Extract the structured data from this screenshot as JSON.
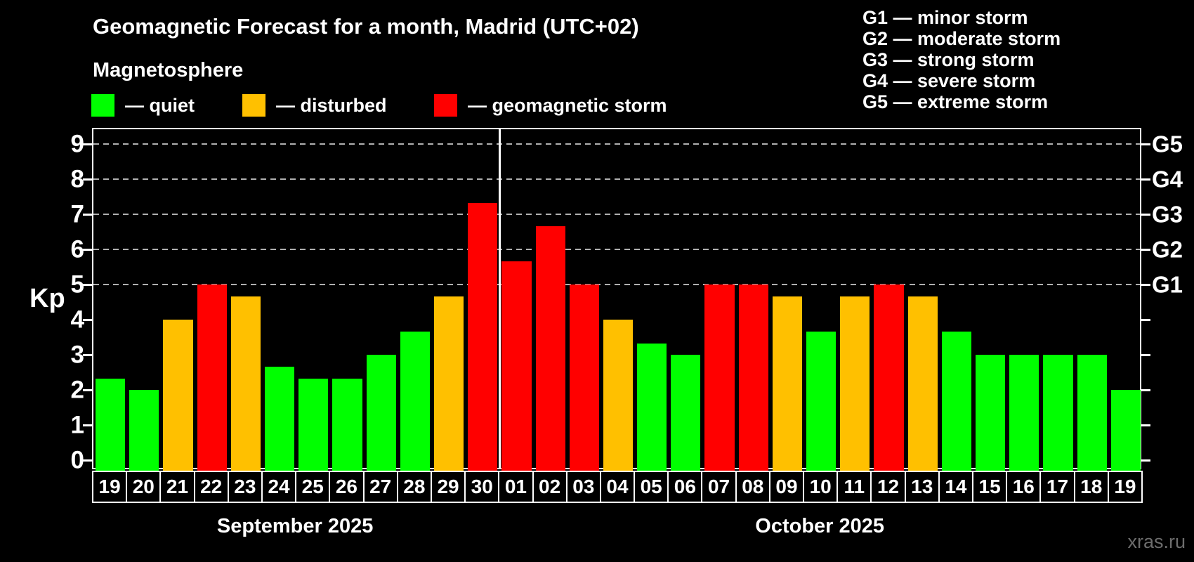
{
  "header": {
    "title": "Geomagnetic Forecast for a month, Madrid (UTC+02)",
    "subtitle": "Magnetosphere",
    "legend": {
      "items": [
        {
          "key": "quiet",
          "label": "— quiet",
          "color": "#00ff00"
        },
        {
          "key": "disturbed",
          "label": "— disturbed",
          "color": "#ffc000"
        },
        {
          "key": "storm",
          "label": "— geomagnetic storm",
          "color": "#ff0000"
        }
      ]
    },
    "storm_scale_legend": {
      "items": [
        {
          "label": "G1 — minor storm"
        },
        {
          "label": "G2 — moderate storm"
        },
        {
          "label": "G3 — strong storm"
        },
        {
          "label": "G4 — severe storm"
        },
        {
          "label": "G5 — extreme storm"
        }
      ]
    }
  },
  "axis": {
    "ylabel": "Kp",
    "yticks": [
      0,
      1,
      2,
      3,
      4,
      5,
      6,
      7,
      8,
      9
    ],
    "right_labels": [
      {
        "kp": 5,
        "label": "G1"
      },
      {
        "kp": 6,
        "label": "G2"
      },
      {
        "kp": 7,
        "label": "G3"
      },
      {
        "kp": 8,
        "label": "G4"
      },
      {
        "kp": 9,
        "label": "G5"
      }
    ]
  },
  "watermark": "xras.ru",
  "chart_data": {
    "type": "bar",
    "title": "Geomagnetic Forecast for a month, Madrid (UTC+02)",
    "subtitle": "Magnetosphere",
    "xlabel": "",
    "ylabel": "Kp",
    "ylim": [
      -0.3,
      9.42
    ],
    "gridlines_kp": [
      5,
      6,
      7,
      8,
      9
    ],
    "legend_position": "top",
    "colors": {
      "quiet": "#00ff00",
      "disturbed": "#ffc000",
      "storm": "#ff0000"
    },
    "months": [
      {
        "label": "September 2025",
        "bars": [
          {
            "day": "19",
            "kp": 2.33,
            "status": "quiet"
          },
          {
            "day": "20",
            "kp": 2.0,
            "status": "quiet"
          },
          {
            "day": "21",
            "kp": 4.0,
            "status": "disturbed"
          },
          {
            "day": "22",
            "kp": 5.0,
            "status": "storm"
          },
          {
            "day": "23",
            "kp": 4.67,
            "status": "disturbed"
          },
          {
            "day": "24",
            "kp": 2.67,
            "status": "quiet"
          },
          {
            "day": "25",
            "kp": 2.33,
            "status": "quiet"
          },
          {
            "day": "26",
            "kp": 2.33,
            "status": "quiet"
          },
          {
            "day": "27",
            "kp": 3.0,
            "status": "quiet"
          },
          {
            "day": "28",
            "kp": 3.67,
            "status": "quiet"
          },
          {
            "day": "29",
            "kp": 4.67,
            "status": "disturbed"
          },
          {
            "day": "30",
            "kp": 7.33,
            "status": "storm"
          }
        ]
      },
      {
        "label": "October 2025",
        "bars": [
          {
            "day": "01",
            "kp": 5.67,
            "status": "storm"
          },
          {
            "day": "02",
            "kp": 6.67,
            "status": "storm"
          },
          {
            "day": "03",
            "kp": 5.0,
            "status": "storm"
          },
          {
            "day": "04",
            "kp": 4.0,
            "status": "disturbed"
          },
          {
            "day": "05",
            "kp": 3.33,
            "status": "quiet"
          },
          {
            "day": "06",
            "kp": 3.0,
            "status": "quiet"
          },
          {
            "day": "07",
            "kp": 5.0,
            "status": "storm"
          },
          {
            "day": "08",
            "kp": 5.0,
            "status": "storm"
          },
          {
            "day": "09",
            "kp": 4.67,
            "status": "disturbed"
          },
          {
            "day": "10",
            "kp": 3.67,
            "status": "quiet"
          },
          {
            "day": "11",
            "kp": 4.67,
            "status": "disturbed"
          },
          {
            "day": "12",
            "kp": 5.0,
            "status": "storm"
          },
          {
            "day": "13",
            "kp": 4.67,
            "status": "disturbed"
          },
          {
            "day": "14",
            "kp": 3.67,
            "status": "quiet"
          },
          {
            "day": "15",
            "kp": 3.0,
            "status": "quiet"
          },
          {
            "day": "16",
            "kp": 3.0,
            "status": "quiet"
          },
          {
            "day": "17",
            "kp": 3.0,
            "status": "quiet"
          },
          {
            "day": "18",
            "kp": 3.0,
            "status": "quiet"
          },
          {
            "day": "19",
            "kp": 2.0,
            "status": "quiet"
          }
        ]
      }
    ]
  }
}
